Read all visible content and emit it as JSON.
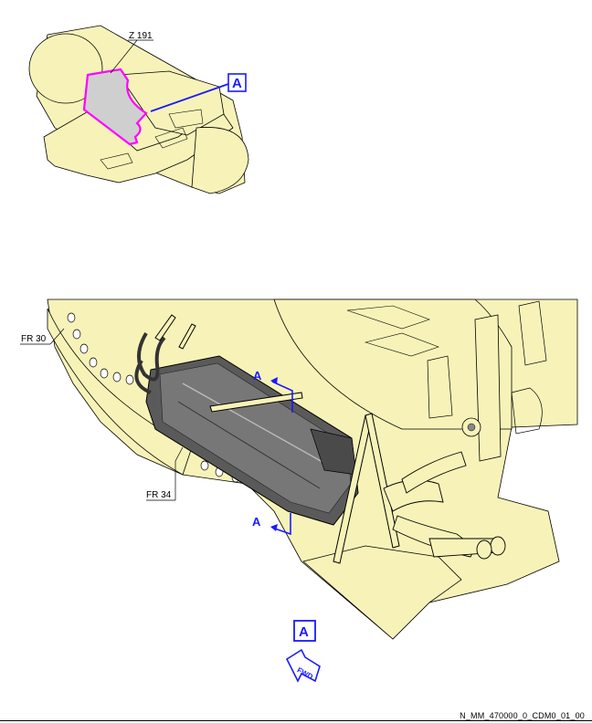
{
  "overview": {
    "zone_label": "Z 191",
    "view_ref": "A"
  },
  "detail": {
    "frame_labels": [
      "FR 30",
      "FR 34"
    ],
    "section_cut": "A",
    "view_ref": "A",
    "fwd_label": "FWD"
  },
  "footer": {
    "drawing_ref": "N_MM_470000_0_CDM0_01_00"
  },
  "colors": {
    "structure_fill": "#f7f3b8",
    "zone_outline": "#ff00ff",
    "zone_fill": "#cfcfcf",
    "callout_blue": "#1a1aff",
    "component_dark": "#444444"
  }
}
